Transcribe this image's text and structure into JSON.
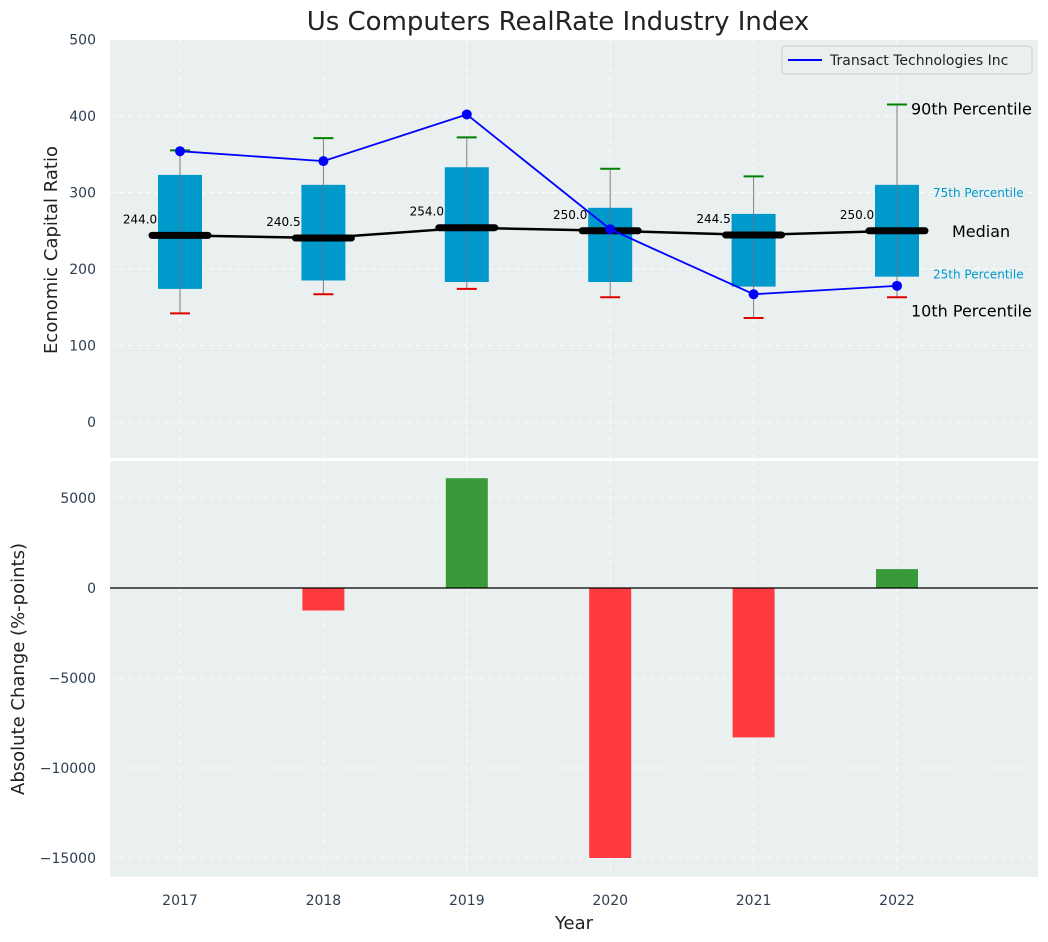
{
  "chart_data": [
    {
      "type": "box",
      "title": "Us Computers RealRate Industry Index",
      "ylabel": "Economic Capital Ratio",
      "ylim": [
        -50,
        500
      ],
      "yticks": [
        0,
        100,
        200,
        300,
        400,
        500
      ],
      "categories": [
        "2017",
        "2018",
        "2019",
        "2020",
        "2021",
        "2022"
      ],
      "grid": true,
      "legend_position": "top-right",
      "p10": [
        142,
        167,
        174,
        163,
        136,
        163
      ],
      "p25": [
        174,
        185,
        183,
        183,
        177,
        190
      ],
      "median": [
        244.0,
        240.5,
        254.0,
        250.0,
        244.5,
        250.0
      ],
      "p75": [
        323,
        310,
        333,
        280,
        272,
        310
      ],
      "p90": [
        355,
        371,
        372,
        331,
        321,
        415
      ],
      "median_labels": [
        "244.0",
        "240.5",
        "254.0",
        "250.0",
        "244.5",
        "250.0"
      ],
      "series": [
        {
          "name": "Transact Technologies Inc",
          "values": [
            354,
            341,
            402,
            252,
            167,
            178
          ],
          "color": "#0000ff"
        }
      ],
      "annotations": {
        "p90": "90th Percentile",
        "p75": "75th Percentile",
        "median": "Median",
        "p25": "25th Percentile",
        "p10": "10th Percentile"
      },
      "colors": {
        "box": "#0099cc",
        "median": "#000000",
        "whisker_top": "#008000",
        "whisker_bottom": "#e00000",
        "background": "#eaeff0"
      }
    },
    {
      "type": "bar",
      "categories": [
        "2017",
        "2018",
        "2019",
        "2020",
        "2021",
        "2022"
      ],
      "values": [
        0,
        -1250,
        6100,
        -15000,
        -8300,
        1050
      ],
      "xlabel": "Year",
      "ylabel": "Absolute Change (%-points)",
      "ylim": [
        -16000,
        7000
      ],
      "yticks": [
        5000,
        0,
        -5000,
        -10000,
        -15000
      ],
      "ytick_labels": [
        "5000",
        "0",
        "−5000",
        "−10000",
        "−15000"
      ],
      "grid": true,
      "colors": {
        "positive": "#3a9a3a",
        "negative": "#ff3b3f"
      }
    }
  ]
}
